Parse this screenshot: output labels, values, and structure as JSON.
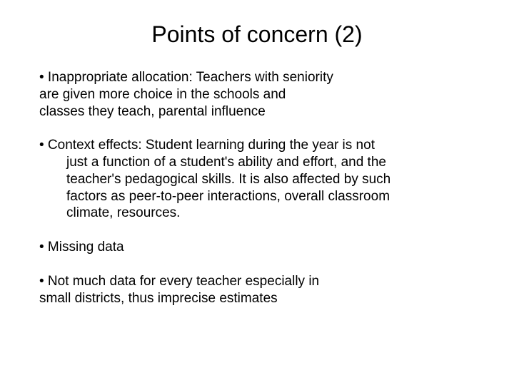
{
  "title": "Points of concern (2)",
  "bullets": {
    "b1": {
      "line1": "•   Inappropriate allocation: Teachers with seniority",
      "line2": "are given more choice in the schools and",
      "line3": "classes they teach, parental influence"
    },
    "b2": {
      "line1": "• Context effects: Student learning during the year is not",
      "line2": "just a function of a student's ability and effort, and the",
      "line3": "teacher's pedagogical skills. It is also affected by such",
      "line4": "factors as peer-to-peer interactions, overall classroom",
      "line5": "climate, resources."
    },
    "b3": {
      "line1": "• Missing data"
    },
    "b4": {
      "line1": "• Not much data for every teacher especially in",
      "line2": "small districts, thus imprecise estimates"
    }
  },
  "style": {
    "background_color": "#ffffff",
    "text_color": "#000000",
    "title_fontsize": 32,
    "body_fontsize": 19,
    "font_family": "Arial"
  }
}
